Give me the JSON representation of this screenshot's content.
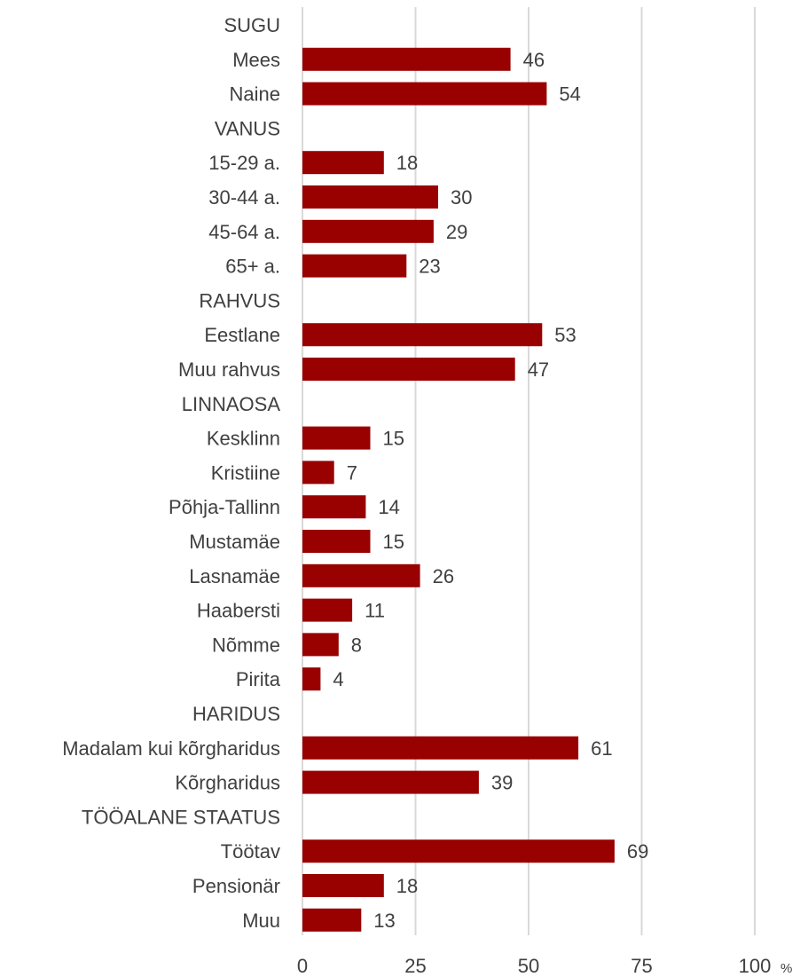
{
  "chart_data": {
    "type": "bar",
    "orientation": "horizontal",
    "unit": "%",
    "xlim": [
      0,
      100
    ],
    "xticks": [
      0,
      25,
      50,
      75,
      100
    ],
    "grid": true,
    "legend": "none",
    "bar_color": "#990000",
    "rows": [
      {
        "label": "SUGU",
        "header": true
      },
      {
        "label": "Mees",
        "value": 46
      },
      {
        "label": "Naine",
        "value": 54
      },
      {
        "label": "VANUS",
        "header": true
      },
      {
        "label": "15-29 a.",
        "value": 18
      },
      {
        "label": "30-44 a.",
        "value": 30
      },
      {
        "label": "45-64 a.",
        "value": 29
      },
      {
        "label": "65+ a.",
        "value": 23
      },
      {
        "label": "RAHVUS",
        "header": true
      },
      {
        "label": "Eestlane",
        "value": 53
      },
      {
        "label": "Muu rahvus",
        "value": 47
      },
      {
        "label": "LINNAOSA",
        "header": true
      },
      {
        "label": "Kesklinn",
        "value": 15
      },
      {
        "label": "Kristiine",
        "value": 7
      },
      {
        "label": "Põhja-Tallinn",
        "value": 14
      },
      {
        "label": "Mustamäe",
        "value": 15
      },
      {
        "label": "Lasnamäe",
        "value": 26
      },
      {
        "label": "Haabersti",
        "value": 11
      },
      {
        "label": "Nõmme",
        "value": 8
      },
      {
        "label": "Pirita",
        "value": 4
      },
      {
        "label": "HARIDUS",
        "header": true
      },
      {
        "label": "Madalam kui kõrgharidus",
        "value": 61
      },
      {
        "label": "Kõrgharidus",
        "value": 39
      },
      {
        "label": "TÖÖALANE STAATUS",
        "header": true
      },
      {
        "label": "Töötav",
        "value": 69
      },
      {
        "label": "Pensionär",
        "value": 18
      },
      {
        "label": "Muu",
        "value": 13
      }
    ]
  }
}
